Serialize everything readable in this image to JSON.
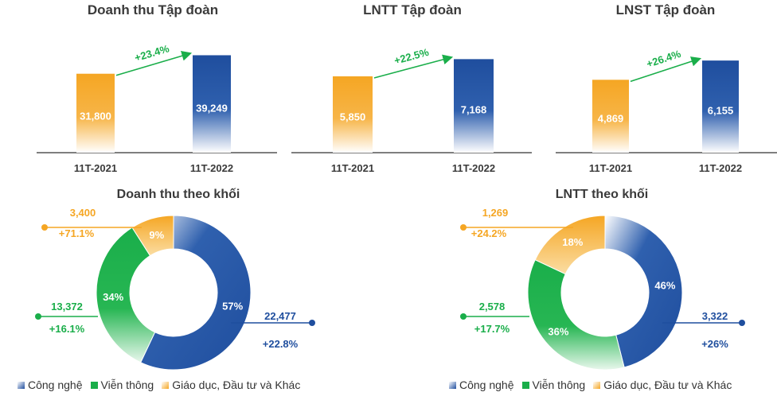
{
  "colors": {
    "orange": "#F5A623",
    "blue": "#1F4E9E",
    "green": "#1AAE4A",
    "arrow": "#1AAE4A",
    "text": "#3a3a3a"
  },
  "chart_data": [
    {
      "type": "bar",
      "title": "Doanh thu Tập đoàn",
      "categories": [
        "11T-2021",
        "11T-2022"
      ],
      "values": [
        31800,
        39249
      ],
      "value_labels": [
        "31,800",
        "39,249"
      ],
      "growth_label": "+23.4%",
      "ylim": [
        0,
        41000
      ]
    },
    {
      "type": "bar",
      "title": "LNTT Tập đoàn",
      "categories": [
        "11T-2021",
        "11T-2022"
      ],
      "values": [
        5850,
        7168
      ],
      "value_labels": [
        "5,850",
        "7,168"
      ],
      "growth_label": "+22.5%",
      "ylim": [
        0,
        7800
      ]
    },
    {
      "type": "bar",
      "title": "LNST Tập đoàn",
      "categories": [
        "11T-2021",
        "11T-2022"
      ],
      "values": [
        4869,
        6155
      ],
      "value_labels": [
        "4,869",
        "6,155"
      ],
      "growth_label": "+26.4%",
      "ylim": [
        0,
        6800
      ]
    },
    {
      "type": "pie",
      "title": "Doanh thu theo khối",
      "categories": [
        "Công nghệ",
        "Viễn thông",
        "Giáo dục, Đầu tư và Khác"
      ],
      "shares": [
        57,
        34,
        9
      ],
      "share_labels": [
        "57%",
        "34%",
        "9%"
      ],
      "values": [
        "22,477",
        "13,372",
        "3,400"
      ],
      "growth": [
        "+22.8%",
        "+16.1%",
        "+71.1%"
      ]
    },
    {
      "type": "pie",
      "title": "LNTT theo khối",
      "categories": [
        "Công nghệ",
        "Viễn thông",
        "Giáo dục, Đầu tư và Khác"
      ],
      "shares": [
        46,
        36,
        18
      ],
      "share_labels": [
        "46%",
        "36%",
        "18%"
      ],
      "values": [
        "3,322",
        "2,578",
        "1,269"
      ],
      "growth": [
        "+26%",
        "+17.7%",
        "+24.2%"
      ]
    }
  ],
  "legend": [
    "Công nghệ",
    "Viễn thông",
    "Giáo dục, Đầu tư và Khác"
  ]
}
